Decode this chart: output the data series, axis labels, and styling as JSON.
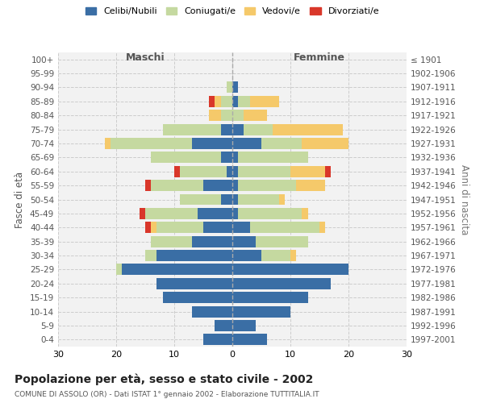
{
  "age_groups": [
    "0-4",
    "5-9",
    "10-14",
    "15-19",
    "20-24",
    "25-29",
    "30-34",
    "35-39",
    "40-44",
    "45-49",
    "50-54",
    "55-59",
    "60-64",
    "65-69",
    "70-74",
    "75-79",
    "80-84",
    "85-89",
    "90-94",
    "95-99",
    "100+"
  ],
  "birth_years": [
    "1997-2001",
    "1992-1996",
    "1987-1991",
    "1982-1986",
    "1977-1981",
    "1972-1976",
    "1967-1971",
    "1962-1966",
    "1957-1961",
    "1952-1956",
    "1947-1951",
    "1942-1946",
    "1937-1941",
    "1932-1936",
    "1927-1931",
    "1922-1926",
    "1917-1921",
    "1912-1916",
    "1907-1911",
    "1902-1906",
    "≤ 1901"
  ],
  "males": {
    "celibi": [
      5,
      3,
      7,
      12,
      13,
      19,
      13,
      7,
      5,
      6,
      2,
      5,
      1,
      2,
      7,
      2,
      0,
      0,
      0,
      0,
      0
    ],
    "coniugati": [
      0,
      0,
      0,
      0,
      0,
      1,
      2,
      7,
      8,
      9,
      7,
      9,
      8,
      12,
      14,
      10,
      2,
      2,
      1,
      0,
      0
    ],
    "vedovi": [
      0,
      0,
      0,
      0,
      0,
      0,
      0,
      0,
      1,
      0,
      0,
      0,
      0,
      0,
      1,
      0,
      2,
      1,
      0,
      0,
      0
    ],
    "divorziati": [
      0,
      0,
      0,
      0,
      0,
      0,
      0,
      0,
      1,
      1,
      0,
      1,
      1,
      0,
      0,
      0,
      0,
      1,
      0,
      0,
      0
    ]
  },
  "females": {
    "nubili": [
      6,
      4,
      10,
      13,
      17,
      20,
      5,
      4,
      3,
      1,
      1,
      1,
      1,
      1,
      5,
      2,
      0,
      1,
      1,
      0,
      0
    ],
    "coniugate": [
      0,
      0,
      0,
      0,
      0,
      0,
      5,
      9,
      12,
      11,
      7,
      10,
      9,
      12,
      7,
      5,
      2,
      2,
      0,
      0,
      0
    ],
    "vedove": [
      0,
      0,
      0,
      0,
      0,
      0,
      1,
      0,
      1,
      1,
      1,
      5,
      6,
      0,
      8,
      12,
      4,
      5,
      0,
      0,
      0
    ],
    "divorziate": [
      0,
      0,
      0,
      0,
      0,
      0,
      0,
      0,
      0,
      0,
      0,
      0,
      1,
      0,
      0,
      0,
      0,
      0,
      0,
      0,
      0
    ]
  },
  "colors": {
    "celibi_nubili": "#3A6EA5",
    "coniugati": "#C5D9A0",
    "vedovi": "#F5C96A",
    "divorziati": "#D9372A"
  },
  "xlim": 30,
  "title": "Popolazione per età, sesso e stato civile - 2002",
  "subtitle": "COMUNE DI ASSOLO (OR) - Dati ISTAT 1° gennaio 2002 - Elaborazione TUTTITALIA.IT",
  "xlabel_left": "Maschi",
  "xlabel_right": "Femmine",
  "ylabel_left": "Fasce di età",
  "ylabel_right": "Anni di nascita",
  "legend_labels": [
    "Celibi/Nubili",
    "Coniugati/e",
    "Vedovi/e",
    "Divorziati/e"
  ],
  "bg_color": "#FFFFFF",
  "plot_bg_color": "#F2F2F2",
  "grid_color": "#CCCCCC",
  "bar_height": 0.8
}
